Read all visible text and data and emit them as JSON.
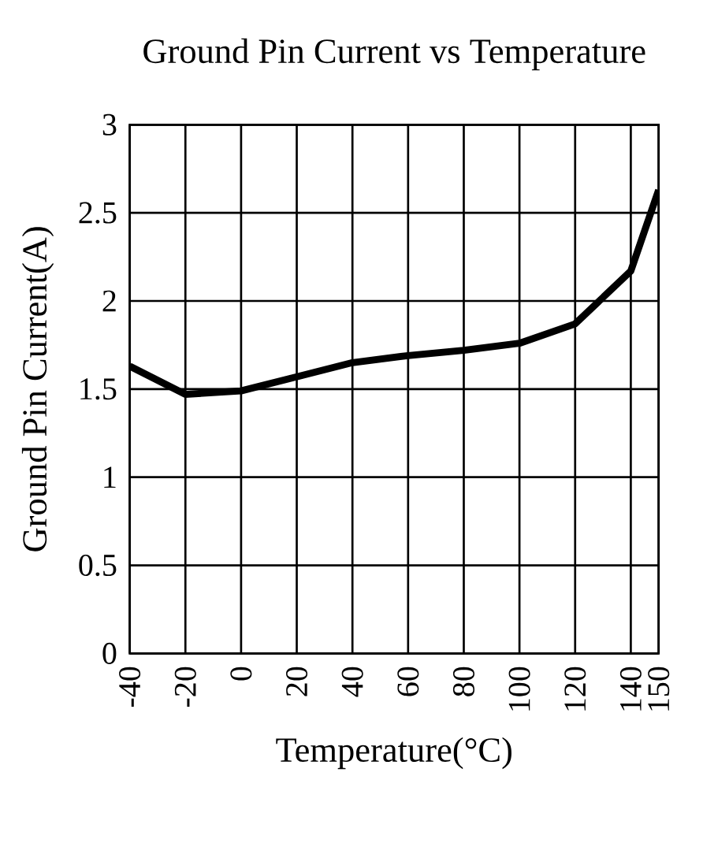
{
  "chart_data": {
    "type": "line",
    "title": "Ground Pin Current vs Temperature",
    "xlabel": "Temperature(°C)",
    "ylabel": "Ground Pin Current(A)",
    "x": [
      -40,
      -20,
      0,
      20,
      40,
      60,
      80,
      100,
      120,
      140,
      150
    ],
    "series": [
      {
        "color": "#000000",
        "values": [
          1.63,
          1.47,
          1.49,
          1.57,
          1.65,
          1.69,
          1.72,
          1.76,
          1.87,
          2.17,
          2.63
        ]
      }
    ],
    "xlim": [
      -40,
      150
    ],
    "xticks": [
      -40,
      -20,
      0,
      20,
      40,
      60,
      80,
      100,
      120,
      140,
      150
    ],
    "ylim": [
      0,
      3
    ],
    "yticks": [
      0,
      0.5,
      1,
      1.5,
      2,
      2.5,
      3
    ],
    "grid": true,
    "marker": "none",
    "line_style": "solid"
  }
}
